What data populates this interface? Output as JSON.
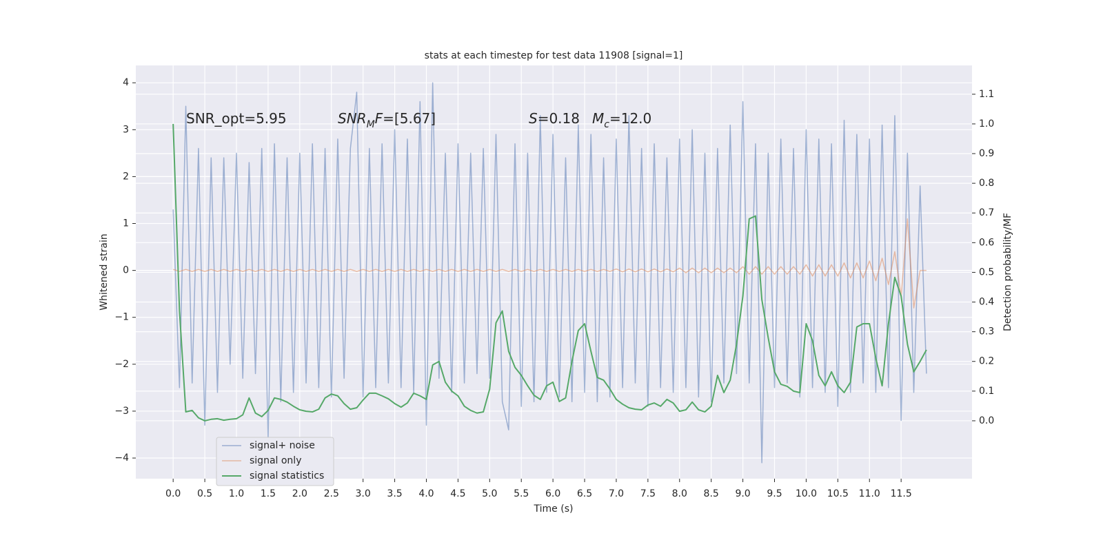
{
  "chart_data": {
    "type": "line",
    "title": "stats at each timestep for test data 11908 [signal=1]",
    "xlabel": "Time (s)",
    "ylabel": "Whitened strain",
    "y2label": "Detection probability/MF",
    "legend": "lower left",
    "grid": true,
    "background": "#eaeaf2",
    "xlim": [
      -0.59,
      12.62
    ],
    "ylim": [
      -4.44,
      4.37
    ],
    "y2lim": [
      -0.195,
      1.197
    ],
    "xticks": [
      {
        "value": 0,
        "label": "0.0"
      },
      0.5,
      {
        "value": 1,
        "label": "1.0"
      },
      1.5,
      {
        "value": 2,
        "label": "2.0"
      },
      2.5,
      {
        "value": 3,
        "label": "3.0"
      },
      3.5,
      {
        "value": 4,
        "label": "4.0"
      },
      4.5,
      {
        "value": 5,
        "label": "5.0"
      },
      5.5,
      {
        "value": 6,
        "label": "6.0"
      },
      6.5,
      {
        "value": 7,
        "label": "7.0"
      },
      7.5,
      {
        "value": 8,
        "label": "8.0"
      },
      8.5,
      {
        "value": 9,
        "label": "9.0"
      },
      9.5,
      {
        "value": 10,
        "label": "10.0"
      },
      10.5,
      {
        "value": 11,
        "label": "11.0"
      },
      11.5
    ],
    "yticks": [
      {
        "value": -4,
        "label": "−4"
      },
      {
        "value": -3,
        "label": "−3"
      },
      {
        "value": -2,
        "label": "−2"
      },
      {
        "value": -1,
        "label": "−1"
      },
      0,
      1,
      2,
      3,
      4
    ],
    "y2ticks": [
      {
        "value": 0,
        "label": "0.0"
      },
      0.1,
      0.2,
      0.3,
      0.4,
      0.5,
      0.6,
      0.7,
      0.8,
      0.9,
      {
        "value": 1,
        "label": "1.0"
      },
      1.1
    ],
    "annotations": [
      [
        {
          "text": "SNR_opt=5.95"
        }
      ],
      [
        {
          "text": "SNR",
          "style": "italic"
        },
        {
          "text": "M",
          "style": "sub"
        },
        {
          "text": "F",
          "style": "italic"
        },
        {
          "text": "=[5.67]"
        }
      ],
      [
        {
          "text": "S",
          "style": "italic"
        },
        {
          "text": "=0.18"
        }
      ],
      [
        {
          "text": "M",
          "style": "italic"
        },
        {
          "text": "c",
          "style": "sub"
        },
        {
          "text": "=12.0"
        }
      ]
    ],
    "x": [
      0,
      0.1,
      0.2,
      0.3,
      0.4,
      0.5,
      0.6,
      0.7,
      0.8,
      0.9,
      1,
      1.1,
      1.2,
      1.3,
      1.4,
      1.5,
      1.6,
      1.7,
      1.8,
      1.9,
      2,
      2.1,
      2.2,
      2.3,
      2.4,
      2.5,
      2.6,
      2.7,
      2.8,
      2.9,
      3,
      3.1,
      3.2,
      3.3,
      3.4,
      3.5,
      3.6,
      3.7,
      3.8,
      3.9,
      4,
      4.1,
      4.2,
      4.3,
      4.4,
      4.5,
      4.6,
      4.7,
      4.8,
      4.9,
      5,
      5.1,
      5.2,
      5.3,
      5.4,
      5.5,
      5.6,
      5.7,
      5.8,
      5.9,
      6,
      6.1,
      6.2,
      6.3,
      6.4,
      6.5,
      6.6,
      6.7,
      6.8,
      6.9,
      7,
      7.1,
      7.2,
      7.3,
      7.4,
      7.5,
      7.6,
      7.7,
      7.8,
      7.9,
      8,
      8.1,
      8.2,
      8.3,
      8.4,
      8.5,
      8.6,
      8.7,
      8.8,
      8.9,
      9,
      9.1,
      9.2,
      9.3,
      9.4,
      9.5,
      9.6,
      9.7,
      9.8,
      9.9,
      10,
      10.1,
      10.2,
      10.3,
      10.4,
      10.5,
      10.6,
      10.7,
      10.8,
      10.9,
      11,
      11.1,
      11.2,
      11.3,
      11.4,
      11.5,
      11.6,
      11.7,
      11.8,
      11.9
    ],
    "series": [
      {
        "name": "signal+ noise",
        "color": "#4c72b0",
        "values": [
          1.3,
          -2.5,
          3.5,
          -2.4,
          2.6,
          -3.3,
          2.4,
          -2.6,
          2.4,
          -2.0,
          2.5,
          -2.3,
          2.3,
          -2.2,
          2.6,
          -3.6,
          2.7,
          -2.8,
          2.4,
          -2.6,
          2.5,
          -2.4,
          2.7,
          -2.5,
          2.6,
          -2.7,
          2.8,
          -2.3,
          2.6,
          3.8,
          -2.7,
          2.6,
          -2.5,
          2.7,
          -2.4,
          3.0,
          -2.5,
          2.8,
          -2.6,
          3.6,
          -3.3,
          4.0,
          -2.3,
          2.5,
          -2.6,
          2.7,
          -2.4,
          2.5,
          -2.2,
          2.6,
          -2.3,
          2.9,
          -2.8,
          -3.4,
          2.7,
          -2.9,
          2.5,
          -2.8,
          3.3,
          -2.6,
          2.9,
          -2.7,
          2.4,
          -2.8,
          3.1,
          -2.6,
          2.9,
          -2.8,
          2.4,
          -2.7,
          2.8,
          -2.5,
          3.3,
          -2.4,
          2.6,
          -2.9,
          2.7,
          -2.5,
          2.4,
          -2.6,
          2.8,
          -2.5,
          3.0,
          -2.7,
          2.5,
          -2.8,
          2.6,
          -2.4,
          3.1,
          -2.2,
          3.6,
          -2.4,
          2.7,
          -4.1,
          2.5,
          -2.5,
          2.8,
          -2.4,
          2.6,
          -2.7,
          3.0,
          -2.5,
          2.8,
          -2.6,
          2.7,
          -2.9,
          3.2,
          -2.6,
          2.9,
          -2.4,
          2.8,
          -2.6,
          3.1,
          -2.5,
          3.3,
          -3.2,
          2.5,
          -2.6,
          1.8,
          -2.2
        ]
      },
      {
        "name": "signal only",
        "color": "#dd8452",
        "values": [
          0.02,
          -0.02,
          0.02,
          -0.02,
          0.02,
          -0.02,
          0.02,
          -0.02,
          0.02,
          -0.02,
          0.02,
          -0.02,
          0.02,
          -0.02,
          0.02,
          -0.02,
          0.02,
          -0.02,
          0.02,
          -0.02,
          0.02,
          -0.02,
          0.02,
          -0.02,
          0.02,
          -0.02,
          0.02,
          -0.02,
          0.02,
          -0.02,
          0.02,
          -0.02,
          0.02,
          -0.02,
          0.02,
          -0.02,
          0.02,
          -0.02,
          0.02,
          -0.02,
          0.02,
          -0.02,
          0.02,
          -0.02,
          0.02,
          -0.02,
          0.02,
          -0.02,
          0.02,
          -0.02,
          0.02,
          -0.02,
          0.02,
          -0.02,
          0.02,
          -0.02,
          0.02,
          -0.02,
          0.02,
          -0.02,
          0.02,
          -0.02,
          0.02,
          -0.02,
          0.02,
          -0.02,
          0.02,
          -0.02,
          0.02,
          -0.02,
          0.03,
          -0.03,
          0.03,
          -0.03,
          0.03,
          -0.03,
          0.03,
          -0.03,
          0.03,
          -0.03,
          0.05,
          -0.05,
          0.05,
          -0.05,
          0.05,
          -0.05,
          0.05,
          -0.05,
          0.05,
          -0.05,
          0.08,
          -0.08,
          0.08,
          -0.08,
          0.08,
          -0.08,
          0.08,
          -0.08,
          0.08,
          -0.08,
          0.12,
          -0.12,
          0.12,
          -0.12,
          0.12,
          -0.12,
          0.16,
          -0.16,
          0.16,
          -0.16,
          0.2,
          -0.22,
          0.26,
          -0.3,
          0.4,
          -0.55,
          1.1,
          -0.8,
          0,
          0
        ]
      },
      {
        "name": "signal statistics",
        "color": "#55a868",
        "axis": "y2",
        "values": [
          1.0,
          0.37,
          0.03,
          0.035,
          0.01,
          0.0,
          0.005,
          0.007,
          0.002,
          0.005,
          0.007,
          0.02,
          0.077,
          0.026,
          0.014,
          0.035,
          0.077,
          0.072,
          0.063,
          0.049,
          0.037,
          0.032,
          0.03,
          0.039,
          0.077,
          0.09,
          0.084,
          0.058,
          0.039,
          0.044,
          0.07,
          0.093,
          0.093,
          0.084,
          0.074,
          0.058,
          0.046,
          0.06,
          0.093,
          0.084,
          0.072,
          0.188,
          0.2,
          0.13,
          0.1,
          0.084,
          0.049,
          0.035,
          0.026,
          0.03,
          0.107,
          0.33,
          0.37,
          0.234,
          0.18,
          0.153,
          0.118,
          0.086,
          0.072,
          0.118,
          0.13,
          0.065,
          0.077,
          0.2,
          0.304,
          0.327,
          0.234,
          0.146,
          0.137,
          0.107,
          0.072,
          0.056,
          0.044,
          0.039,
          0.037,
          0.053,
          0.06,
          0.049,
          0.072,
          0.06,
          0.032,
          0.037,
          0.063,
          0.037,
          0.03,
          0.049,
          0.153,
          0.095,
          0.137,
          0.258,
          0.42,
          0.68,
          0.69,
          0.408,
          0.28,
          0.165,
          0.123,
          0.116,
          0.1,
          0.095,
          0.327,
          0.27,
          0.153,
          0.118,
          0.165,
          0.118,
          0.095,
          0.13,
          0.316,
          0.327,
          0.327,
          0.211,
          0.118,
          0.327,
          0.483,
          0.42,
          0.258,
          0.165,
          0.2,
          0.239
        ]
      }
    ]
  }
}
